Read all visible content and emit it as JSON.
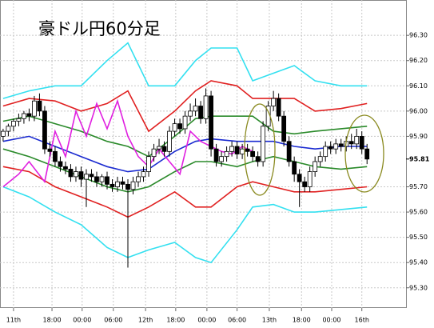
{
  "chart_data": {
    "type": "candlestick",
    "title": "豪ドル円60分足",
    "ylim": [
      95.22,
      96.44
    ],
    "xlim": [
      -0.6,
      77.5
    ],
    "yticks": [
      {
        "value": 95.3,
        "label": "95.30"
      },
      {
        "value": 95.4,
        "label": "95.40"
      },
      {
        "value": 95.5,
        "label": "95.50"
      },
      {
        "value": 95.6,
        "label": "95.60"
      },
      {
        "value": 95.7,
        "label": "95.70"
      },
      {
        "value": 95.9,
        "label": "95.90"
      },
      {
        "value": 96.0,
        "label": "96.00"
      },
      {
        "value": 96.1,
        "label": "96.10"
      },
      {
        "value": 96.2,
        "label": "96.20"
      },
      {
        "value": 96.3,
        "label": "96.30"
      }
    ],
    "xticks": [
      {
        "value": 2,
        "label": "11th"
      },
      {
        "value": 9.4,
        "label": "18:00"
      },
      {
        "value": 15.2,
        "label": "00:00"
      },
      {
        "value": 21.2,
        "label": "06:00"
      },
      {
        "value": 27.4,
        "label": "12th"
      },
      {
        "value": 33.2,
        "label": "18:00"
      },
      {
        "value": 39.2,
        "label": "00:00"
      },
      {
        "value": 45,
        "label": "06:00"
      },
      {
        "value": 51.2,
        "label": "13th"
      },
      {
        "value": 57.4,
        "label": "18:00"
      },
      {
        "value": 63.2,
        "label": "00:00"
      },
      {
        "value": 69,
        "label": "16th"
      }
    ],
    "last_price": {
      "value": 95.81,
      "label": "95.81"
    },
    "grid": true,
    "up_color": "#ffffff",
    "down_color": "#000000",
    "x": [
      0,
      1,
      2,
      3,
      4,
      5,
      6,
      7,
      8,
      9,
      10,
      11,
      12,
      13,
      14,
      15,
      16,
      17,
      18,
      19,
      20,
      21,
      22,
      23,
      24,
      25,
      26,
      27,
      28,
      29,
      30,
      31,
      32,
      33,
      34,
      35,
      36,
      37,
      38,
      39,
      40,
      41,
      42,
      43,
      44,
      45,
      46,
      47,
      48,
      49,
      50,
      51,
      52,
      53,
      54,
      55,
      56,
      57,
      58,
      59,
      60,
      61,
      62,
      63,
      64,
      65,
      66,
      67,
      68,
      69,
      70
    ],
    "open": [
      95.9,
      95.92,
      95.94,
      95.96,
      95.97,
      95.99,
      95.98,
      96.04,
      96.0,
      95.85,
      95.84,
      95.8,
      95.78,
      95.77,
      95.74,
      95.76,
      95.73,
      95.75,
      95.74,
      95.72,
      95.74,
      95.71,
      95.7,
      95.72,
      95.71,
      95.69,
      95.72,
      95.74,
      95.76,
      95.82,
      95.85,
      95.86,
      95.84,
      95.92,
      95.95,
      95.93,
      95.98,
      96.0,
      96.02,
      95.97,
      96.06,
      95.85,
      95.8,
      95.82,
      95.84,
      95.86,
      95.83,
      95.85,
      95.84,
      95.82,
      95.8,
      95.94,
      96.02,
      96.05,
      95.98,
      95.88,
      95.8,
      95.75,
      95.72,
      95.7,
      95.76,
      95.8,
      95.82,
      95.86,
      95.85,
      95.87,
      95.86,
      95.88,
      95.87,
      95.9,
      95.85
    ],
    "high": [
      95.93,
      95.95,
      95.97,
      95.99,
      96.0,
      96.01,
      96.06,
      96.07,
      96.02,
      95.88,
      95.86,
      95.82,
      95.8,
      95.79,
      95.78,
      95.78,
      95.77,
      95.77,
      95.76,
      95.75,
      95.76,
      95.73,
      95.74,
      95.74,
      95.73,
      95.74,
      95.76,
      95.78,
      95.84,
      95.87,
      95.89,
      95.88,
      95.94,
      95.97,
      95.97,
      96.0,
      96.03,
      96.05,
      96.04,
      96.09,
      96.08,
      95.87,
      95.84,
      95.86,
      95.88,
      95.88,
      95.87,
      95.87,
      95.86,
      95.84,
      95.96,
      96.04,
      96.08,
      96.07,
      96.0,
      95.9,
      95.82,
      95.77,
      95.74,
      95.78,
      95.82,
      95.84,
      95.88,
      95.88,
      95.89,
      95.89,
      95.9,
      95.91,
      95.93,
      95.92,
      95.87
    ],
    "low": [
      95.88,
      95.9,
      95.92,
      95.94,
      95.95,
      95.96,
      95.96,
      95.98,
      95.83,
      95.82,
      95.78,
      95.76,
      95.75,
      95.72,
      95.72,
      95.7,
      95.62,
      95.72,
      95.7,
      95.7,
      95.69,
      95.68,
      95.68,
      95.69,
      95.38,
      95.67,
      95.7,
      95.72,
      95.74,
      95.8,
      95.83,
      95.82,
      95.82,
      95.9,
      95.91,
      95.91,
      95.96,
      95.98,
      95.95,
      95.95,
      95.82,
      95.78,
      95.78,
      95.8,
      95.82,
      95.81,
      95.81,
      95.82,
      95.8,
      95.78,
      95.78,
      95.92,
      96.0,
      95.96,
      95.86,
      95.78,
      95.72,
      95.62,
      95.68,
      95.68,
      95.74,
      95.78,
      95.8,
      95.83,
      95.83,
      95.84,
      95.84,
      95.85,
      95.85,
      95.83,
      95.79
    ],
    "close": [
      95.92,
      95.94,
      95.96,
      95.97,
      95.99,
      95.98,
      96.04,
      96.0,
      95.85,
      95.84,
      95.8,
      95.78,
      95.77,
      95.74,
      95.76,
      95.73,
      95.75,
      95.74,
      95.72,
      95.74,
      95.71,
      95.7,
      95.72,
      95.71,
      95.69,
      95.72,
      95.74,
      95.76,
      95.82,
      95.85,
      95.86,
      95.84,
      95.92,
      95.95,
      95.93,
      95.98,
      96.0,
      96.02,
      95.97,
      96.06,
      95.85,
      95.8,
      95.82,
      95.84,
      95.86,
      95.83,
      95.85,
      95.84,
      95.82,
      95.8,
      95.94,
      96.02,
      96.05,
      95.98,
      95.88,
      95.8,
      95.75,
      95.72,
      95.7,
      95.76,
      95.8,
      95.82,
      95.86,
      95.85,
      95.87,
      95.86,
      95.88,
      95.87,
      95.9,
      95.85,
      95.81
    ],
    "series": [
      {
        "color": "#33e0f0",
        "x": [
          0,
          5,
          10,
          15,
          20,
          24,
          28,
          33,
          37,
          40,
          45,
          48,
          52,
          56,
          60,
          65,
          70
        ],
        "values": [
          96.05,
          96.08,
          96.1,
          96.1,
          96.2,
          96.27,
          96.1,
          96.1,
          96.2,
          96.25,
          96.25,
          96.12,
          96.15,
          96.18,
          96.12,
          96.1,
          96.1
        ]
      },
      {
        "color": "#33e0f0",
        "x": [
          0,
          5,
          10,
          15,
          20,
          24,
          28,
          33,
          37,
          40,
          45,
          48,
          52,
          56,
          60,
          65,
          70
        ],
        "values": [
          95.7,
          95.66,
          95.6,
          95.55,
          95.46,
          95.42,
          95.45,
          95.48,
          95.42,
          95.4,
          95.53,
          95.62,
          95.63,
          95.6,
          95.6,
          95.61,
          95.62
        ]
      },
      {
        "color": "#e02020",
        "x": [
          0,
          5,
          10,
          15,
          20,
          24,
          28,
          33,
          37,
          40,
          45,
          48,
          52,
          56,
          60,
          65,
          70
        ],
        "values": [
          96.02,
          96.05,
          96.04,
          96.0,
          96.03,
          96.08,
          95.92,
          96.0,
          96.08,
          96.12,
          96.1,
          96.05,
          96.05,
          96.05,
          96.0,
          96.01,
          96.03
        ]
      },
      {
        "color": "#e02020",
        "x": [
          0,
          5,
          10,
          15,
          20,
          24,
          28,
          33,
          37,
          40,
          45,
          48,
          52,
          56,
          60,
          65,
          70
        ],
        "values": [
          95.78,
          95.76,
          95.7,
          95.66,
          95.62,
          95.58,
          95.62,
          95.68,
          95.62,
          95.62,
          95.7,
          95.72,
          95.7,
          95.68,
          95.68,
          95.69,
          95.7
        ]
      },
      {
        "color": "#2a8a2a",
        "x": [
          0,
          5,
          10,
          15,
          20,
          24,
          28,
          33,
          37,
          40,
          45,
          48,
          52,
          56,
          60,
          65,
          70
        ],
        "values": [
          95.96,
          95.98,
          95.95,
          95.92,
          95.88,
          95.86,
          95.82,
          95.9,
          95.97,
          95.98,
          95.98,
          95.98,
          95.92,
          95.91,
          95.92,
          95.93,
          95.94
        ]
      },
      {
        "color": "#2a8a2a",
        "x": [
          0,
          5,
          10,
          15,
          20,
          24,
          28,
          33,
          37,
          40,
          45,
          48,
          52,
          56,
          60,
          65,
          70
        ],
        "values": [
          95.85,
          95.82,
          95.78,
          95.74,
          95.7,
          95.68,
          95.7,
          95.76,
          95.8,
          95.8,
          95.78,
          95.8,
          95.82,
          95.8,
          95.78,
          95.77,
          95.78
        ]
      },
      {
        "color": "#1a2ad0",
        "x": [
          0,
          5,
          10,
          15,
          20,
          24,
          28,
          33,
          37,
          40,
          45,
          48,
          52,
          56,
          60,
          65,
          70
        ],
        "values": [
          95.88,
          95.9,
          95.86,
          95.82,
          95.78,
          95.76,
          95.77,
          95.84,
          95.88,
          95.89,
          95.88,
          95.88,
          95.88,
          95.86,
          95.85,
          95.86,
          95.86
        ]
      },
      {
        "color": "#e020e0",
        "x": [
          0,
          3,
          5,
          8,
          10,
          12,
          14,
          16,
          18,
          20,
          22,
          24,
          26,
          28,
          30,
          32,
          34,
          36,
          38,
          40,
          42,
          44,
          46,
          48
        ],
        "values": [
          95.7,
          95.75,
          95.8,
          95.72,
          95.92,
          95.82,
          96.0,
          95.9,
          96.03,
          95.93,
          96.04,
          95.9,
          95.82,
          95.78,
          95.85,
          95.8,
          95.75,
          95.92,
          95.88,
          95.86,
          95.84,
          95.83,
          95.86,
          95.84
        ]
      }
    ]
  }
}
